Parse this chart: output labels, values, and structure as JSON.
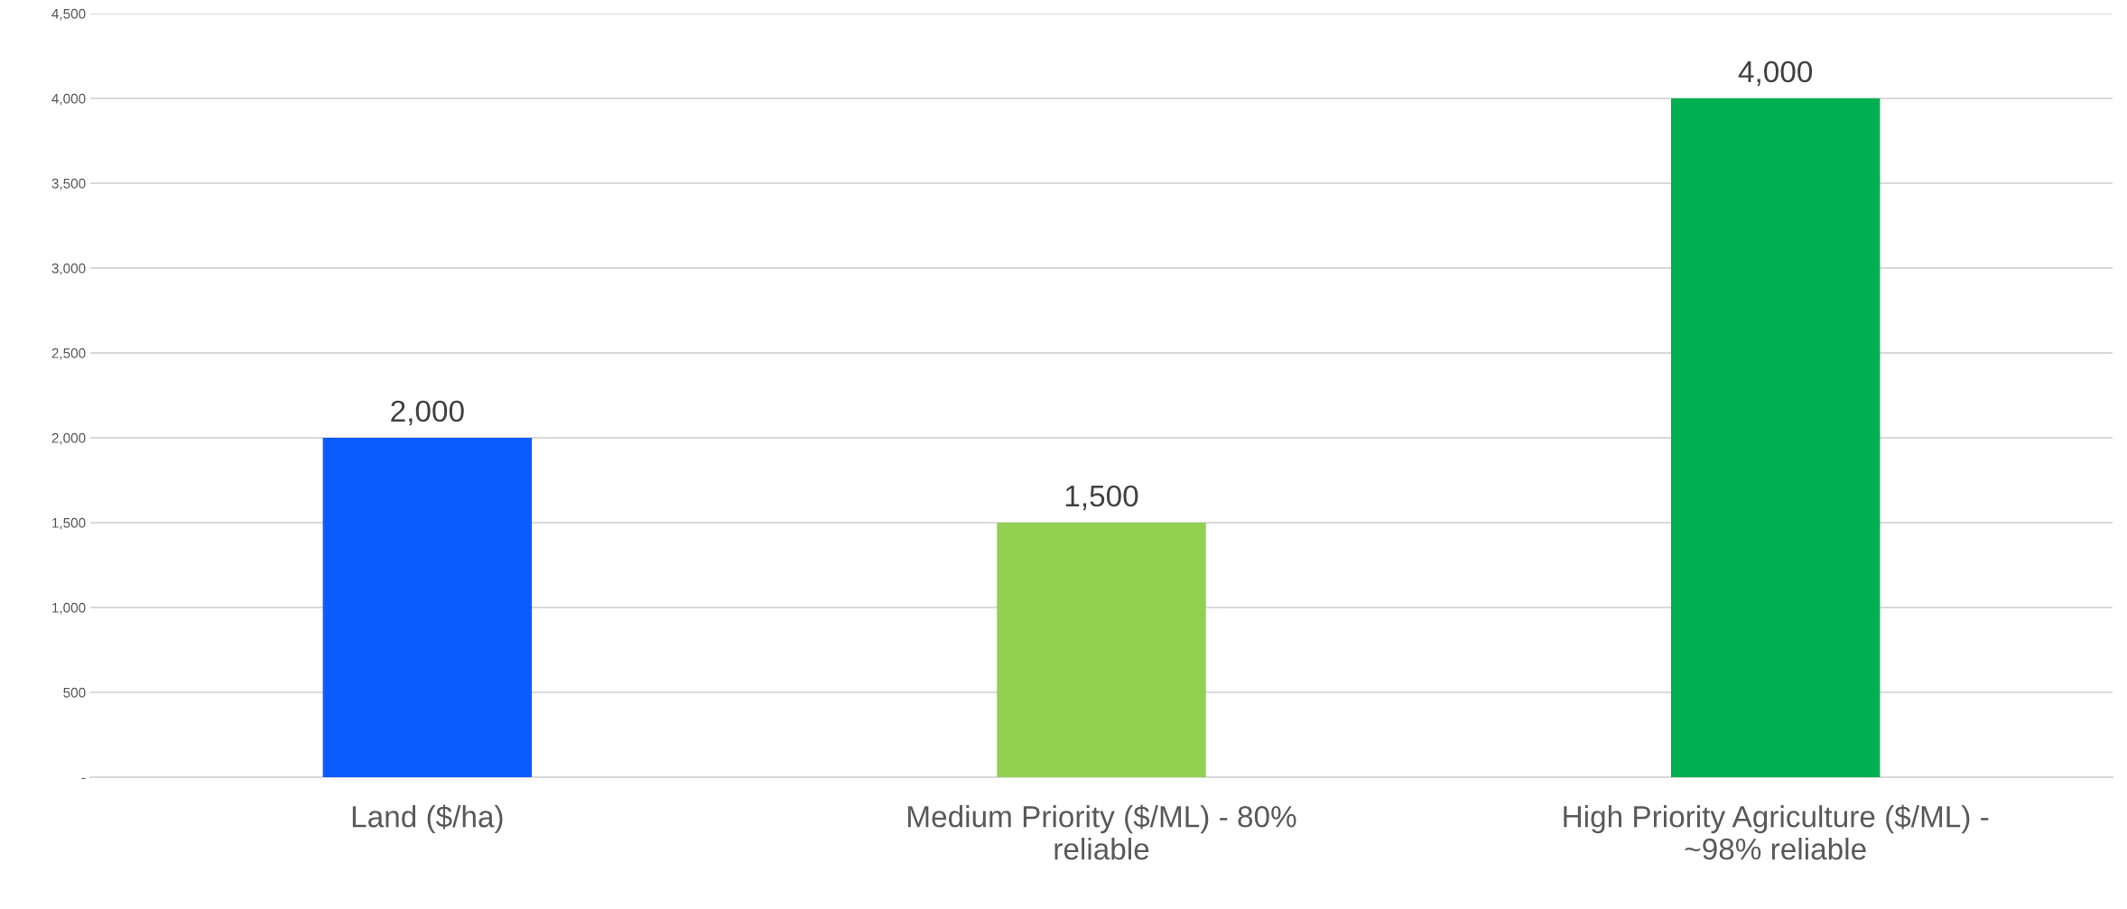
{
  "chart_data": {
    "type": "bar",
    "categories": [
      "Land ($/ha)",
      "Medium Priority ($/ML) - 80%\nreliable",
      "High Priority Agriculture ($/ML) -\n~98% reliable"
    ],
    "values": [
      2000,
      1500,
      4000
    ],
    "colors": [
      "#0a5cff",
      "#92d050",
      "#00b050"
    ],
    "ylim": [
      0,
      4500
    ],
    "yticks": [
      {
        "value": 0,
        "label": "-"
      },
      {
        "value": 500,
        "label": "500"
      },
      {
        "value": 1000,
        "label": "1,000"
      },
      {
        "value": 1500,
        "label": "1,500"
      },
      {
        "value": 2000,
        "label": "2,000"
      },
      {
        "value": 2500,
        "label": "2,500"
      },
      {
        "value": 3000,
        "label": "3,000"
      },
      {
        "value": 3500,
        "label": "3,500"
      },
      {
        "value": 4000,
        "label": "4,000"
      },
      {
        "value": 4500,
        "label": "4,500"
      }
    ],
    "value_labels": [
      "2,000",
      "1,500",
      "4,000"
    ],
    "grid": "y",
    "legend": false
  }
}
